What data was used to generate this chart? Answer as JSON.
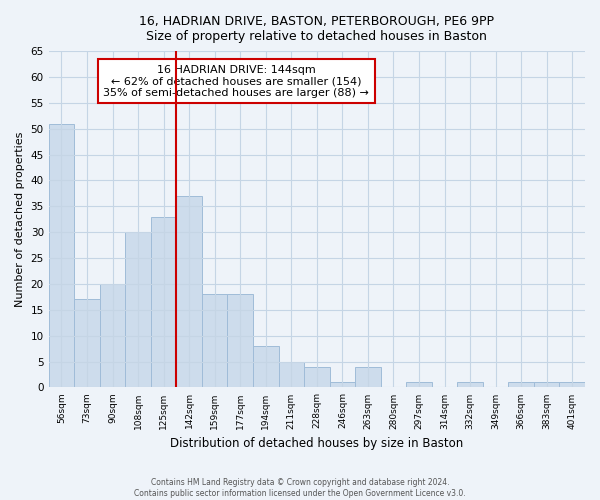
{
  "title1": "16, HADRIAN DRIVE, BASTON, PETERBOROUGH, PE6 9PP",
  "title2": "Size of property relative to detached houses in Baston",
  "xlabel": "Distribution of detached houses by size in Baston",
  "ylabel": "Number of detached properties",
  "bar_labels": [
    "56sqm",
    "73sqm",
    "90sqm",
    "108sqm",
    "125sqm",
    "142sqm",
    "159sqm",
    "177sqm",
    "194sqm",
    "211sqm",
    "228sqm",
    "246sqm",
    "263sqm",
    "280sqm",
    "297sqm",
    "314sqm",
    "332sqm",
    "349sqm",
    "366sqm",
    "383sqm",
    "401sqm"
  ],
  "bar_values": [
    51,
    17,
    20,
    30,
    33,
    37,
    18,
    18,
    8,
    5,
    4,
    1,
    4,
    0,
    1,
    0,
    1,
    0,
    1,
    1,
    1
  ],
  "bar_color": "#cddcec",
  "bar_edge_color": "#a0bcd8",
  "highlight_bar_index": 5,
  "highlight_color": "#cc0000",
  "annotation_text": "16 HADRIAN DRIVE: 144sqm\n← 62% of detached houses are smaller (154)\n35% of semi-detached houses are larger (88) →",
  "annotation_box_color": "#ffffff",
  "annotation_box_edge_color": "#cc0000",
  "ylim": [
    0,
    65
  ],
  "yticks": [
    0,
    5,
    10,
    15,
    20,
    25,
    30,
    35,
    40,
    45,
    50,
    55,
    60,
    65
  ],
  "footer_line1": "Contains HM Land Registry data © Crown copyright and database right 2024.",
  "footer_line2": "Contains public sector information licensed under the Open Government Licence v3.0.",
  "bg_color": "#eef3f9",
  "grid_color": "#c5d5e5"
}
